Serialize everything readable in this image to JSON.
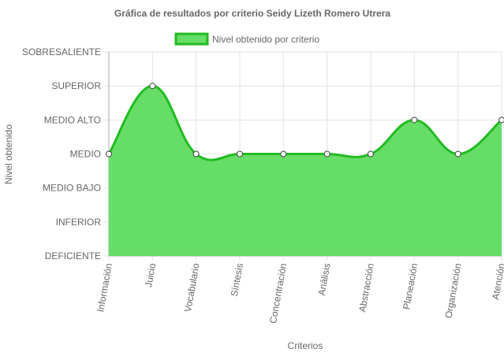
{
  "chart_data": {
    "type": "area",
    "title": "Gráfica de resultados por criterio Seidy Lizeth Romero Utrera",
    "xlabel": "Criterios",
    "ylabel": "Nivel obtenido",
    "y_levels": [
      "DEFICIENTE",
      "INFERIOR",
      "MEDIO BAJO",
      "MEDIO",
      "MEDIO ALTO",
      "SUPERIOR",
      "SOBRESALIENTE"
    ],
    "categories": [
      "Información",
      "Juicio",
      "Vocabulario",
      "Síntesis",
      "Concentración",
      "Análisis",
      "Abstracción",
      "Planeación",
      "Organización",
      "Atención"
    ],
    "series": [
      {
        "name": "Nivel obtenido por criterio",
        "values": [
          "MEDIO",
          "SUPERIOR",
          "MEDIO",
          "MEDIO",
          "MEDIO",
          "MEDIO",
          "MEDIO",
          "MEDIO ALTO",
          "MEDIO",
          "MEDIO ALTO"
        ],
        "numeric_values": [
          3,
          5,
          3,
          3,
          3,
          3,
          3,
          4,
          3,
          4
        ]
      }
    ],
    "grid": true,
    "legend_position": "top",
    "colors": {
      "fill": "#66dd66",
      "stroke": "#22bb22",
      "point_fill": "#ffffff",
      "point_stroke": "#444444",
      "grid": "#e2e2e2",
      "axis": "#aaaaaa"
    }
  }
}
